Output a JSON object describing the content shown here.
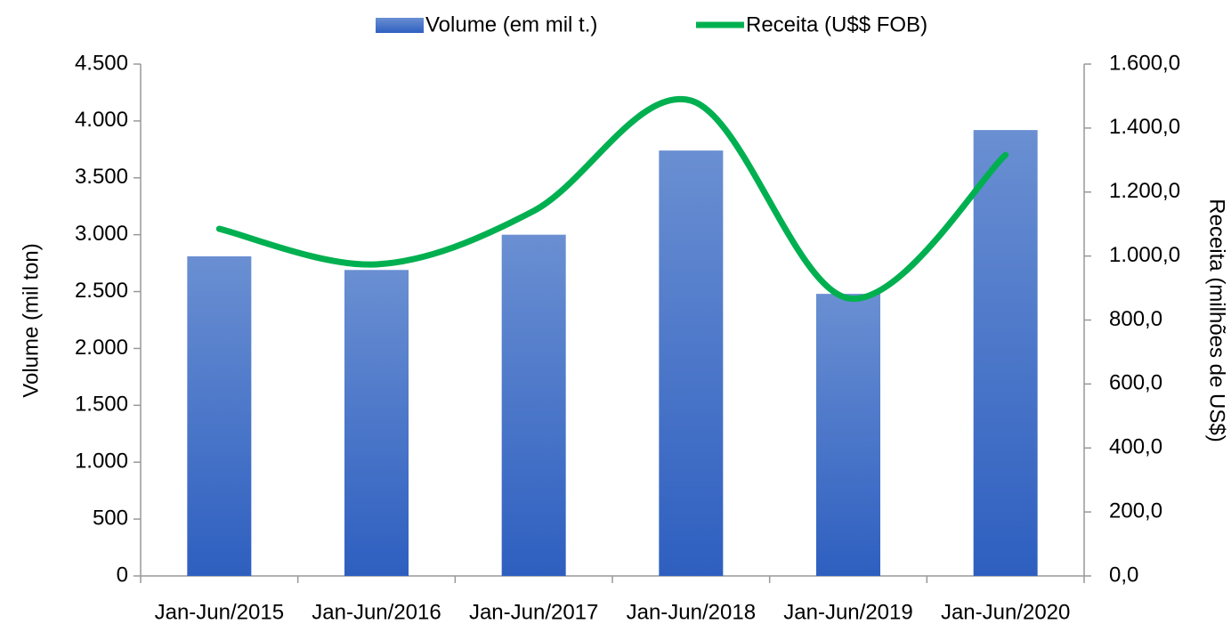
{
  "chart_data": {
    "type": "bar-line",
    "categories": [
      "Jan-Jun/2015",
      "Jan-Jun/2016",
      "Jan-Jun/2017",
      "Jan-Jun/2018",
      "Jan-Jun/2019",
      "Jan-Jun/2020"
    ],
    "series": [
      {
        "name": "Volume (em mil t.)",
        "type": "bar",
        "color": "#3a66c4",
        "values": [
          2810,
          2690,
          3000,
          3740,
          2480,
          3920
        ]
      },
      {
        "name": "Receita (U$$ FOB)",
        "type": "line",
        "axis": "y2",
        "color": "#00b050",
        "values": [
          1085,
          974,
          1141,
          1486,
          868,
          1316
        ]
      }
    ],
    "y_label": "Volume (mil ton)",
    "y2_label": "Receita (milhões de US$)",
    "ylim": [
      0,
      4500
    ],
    "yticks": [
      0,
      500,
      {
        "value": 1000,
        "label": "1.000"
      },
      {
        "value": 1500,
        "label": "1.500"
      },
      {
        "value": 2000,
        "label": "2.000"
      },
      {
        "value": 2500,
        "label": "2.500"
      },
      {
        "value": 3000,
        "label": "3.000"
      },
      {
        "value": 3500,
        "label": "3.500"
      },
      {
        "value": 4000,
        "label": "4.000"
      },
      {
        "value": 4500,
        "label": "4.500"
      }
    ],
    "y2lim": [
      0,
      1600
    ],
    "y2ticks": [
      {
        "value": 0,
        "label": "0,0"
      },
      {
        "value": 200,
        "label": "200,0"
      },
      {
        "value": 400,
        "label": "400,0"
      },
      {
        "value": 600,
        "label": "600,0"
      },
      {
        "value": 800,
        "label": "800,0"
      },
      {
        "value": 1000,
        "label": "1.000,0"
      },
      {
        "value": 1200,
        "label": "1.200,0"
      },
      {
        "value": 1400,
        "label": "1.400,0"
      },
      {
        "value": 1600,
        "label": "1.600,0"
      }
    ],
    "legend": "top"
  }
}
